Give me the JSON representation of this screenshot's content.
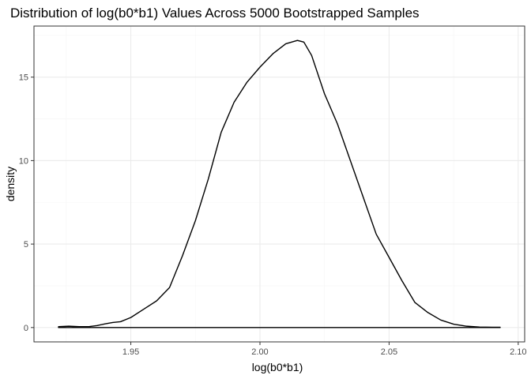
{
  "chart_data": {
    "type": "line",
    "title": "Distribution of log(b0*b1) Values Across 5000 Bootstrapped Samples",
    "xlabel": "log(b0*b1)",
    "ylabel": "density",
    "xlim": [
      1.92,
      2.1
    ],
    "ylim": [
      0,
      17.2
    ],
    "x_ticks": [
      1.95,
      2.0,
      2.05,
      2.1
    ],
    "x_tick_labels": [
      "1.95",
      "2.00",
      "2.05",
      "2.10"
    ],
    "y_ticks": [
      0,
      5,
      10,
      15
    ],
    "y_tick_labels": [
      "0",
      "5",
      "10",
      "15"
    ],
    "grid": true,
    "theme": "bw",
    "colors": {
      "line": "#000000",
      "grid_major": "#ebebeb",
      "grid_minor": "#f5f5f5",
      "panel_border": "#333333"
    },
    "series": [
      {
        "x": [
          1.922,
          1.926,
          1.93,
          1.934,
          1.937,
          1.94,
          1.943,
          1.946,
          1.95,
          1.955,
          1.96,
          1.965,
          1.97,
          1.975,
          1.98,
          1.985,
          1.99,
          1.995,
          2.0,
          2.005,
          2.01,
          2.0145,
          2.017,
          2.02,
          2.025,
          2.03,
          2.035,
          2.04,
          2.045,
          2.05,
          2.055,
          2.06,
          2.065,
          2.07,
          2.075,
          2.08,
          2.085,
          2.09,
          2.093
        ],
        "y": [
          0.05,
          0.08,
          0.05,
          0.06,
          0.12,
          0.22,
          0.3,
          0.35,
          0.6,
          1.1,
          1.6,
          2.4,
          4.3,
          6.4,
          8.9,
          11.7,
          13.5,
          14.7,
          15.6,
          16.4,
          17.0,
          17.2,
          17.1,
          16.3,
          14.0,
          12.2,
          10.0,
          7.8,
          5.6,
          4.2,
          2.8,
          1.5,
          0.9,
          0.45,
          0.2,
          0.08,
          0.03,
          0.02,
          0.02
        ]
      }
    ]
  }
}
